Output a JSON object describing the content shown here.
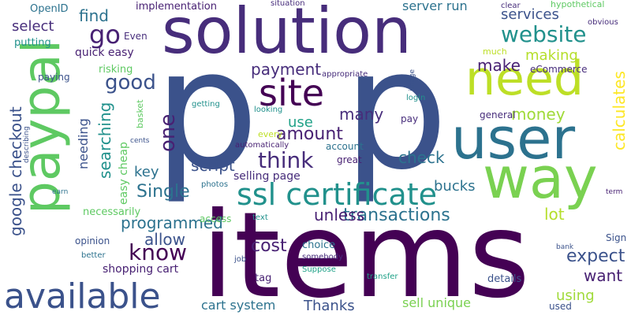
{
  "words": [
    {
      "text": "p",
      "color": "#3b528b"
    },
    {
      "text": "items",
      "color": "#440154"
    },
    {
      "text": "solution",
      "color": "#472d7b"
    },
    {
      "text": "paypal",
      "color": "#5ec962"
    },
    {
      "text": "user",
      "color": "#2c728e"
    },
    {
      "text": "way",
      "color": "#7ad151"
    },
    {
      "text": "need",
      "color": "#bddf26"
    },
    {
      "text": "available",
      "color": "#3b528b"
    },
    {
      "text": "site",
      "color": "#440154"
    },
    {
      "text": "ssl certificate",
      "color": "#21918c"
    },
    {
      "text": "good",
      "color": "#3b528b"
    },
    {
      "text": "website",
      "color": "#21918c"
    },
    {
      "text": "know",
      "color": "#440154"
    },
    {
      "text": "think",
      "color": "#472d7b"
    },
    {
      "text": "go",
      "color": "#482173"
    },
    {
      "text": "google checkout",
      "color": "#3b528b"
    },
    {
      "text": "one",
      "color": "#482173"
    },
    {
      "text": "transactions",
      "color": "#2c728e"
    },
    {
      "text": "Single",
      "color": "#2c728e"
    },
    {
      "text": "amount",
      "color": "#482173"
    },
    {
      "text": "payment",
      "color": "#472d7b"
    },
    {
      "text": "script",
      "color": "#3b528b"
    },
    {
      "text": "cost",
      "color": "#482173"
    },
    {
      "text": "calculates",
      "color": "#fde725"
    },
    {
      "text": "searching",
      "color": "#21918c"
    },
    {
      "text": "programmed",
      "color": "#2c728e"
    },
    {
      "text": "expect",
      "color": "#3b528b"
    },
    {
      "text": "check",
      "color": "#2c728e"
    },
    {
      "text": "unless",
      "color": "#482173"
    },
    {
      "text": "lot",
      "color": "#b5de2b"
    },
    {
      "text": "want",
      "color": "#482173"
    },
    {
      "text": "money",
      "color": "#a0da39"
    },
    {
      "text": "many",
      "color": "#472d7b"
    },
    {
      "text": "bucks",
      "color": "#2c728e"
    },
    {
      "text": "allow",
      "color": "#3b528b"
    },
    {
      "text": "make",
      "color": "#482173"
    },
    {
      "text": "making",
      "color": "#b5de2b"
    },
    {
      "text": "services",
      "color": "#3b528b"
    },
    {
      "text": "use",
      "color": "#1fa187"
    },
    {
      "text": "needing",
      "color": "#3b528b"
    },
    {
      "text": "find",
      "color": "#2c728e"
    },
    {
      "text": "select",
      "color": "#472d7b"
    },
    {
      "text": "key",
      "color": "#2c728e"
    },
    {
      "text": "using",
      "color": "#a0da39"
    },
    {
      "text": "Thanks",
      "color": "#3b528b"
    },
    {
      "text": "server run",
      "color": "#2c728e"
    },
    {
      "text": "cart system",
      "color": "#2c728e"
    },
    {
      "text": "sell unique",
      "color": "#7ad151"
    },
    {
      "text": "quick easy",
      "color": "#482173"
    },
    {
      "text": "selling page",
      "color": "#472d7b"
    },
    {
      "text": "shopping cart",
      "color": "#482173"
    },
    {
      "text": "easy cheap",
      "color": "#5ec962"
    },
    {
      "text": "putting",
      "color": "#21918c"
    },
    {
      "text": "OpenID",
      "color": "#2c728e"
    },
    {
      "text": "implementation",
      "color": "#482173"
    },
    {
      "text": "Even",
      "color": "#472d7b"
    },
    {
      "text": "risking",
      "color": "#5ec962"
    },
    {
      "text": "paying",
      "color": "#3b528b"
    },
    {
      "text": "necessarily",
      "color": "#5ec962"
    },
    {
      "text": "opinion",
      "color": "#3b528b"
    },
    {
      "text": "details",
      "color": "#3b528b"
    },
    {
      "text": "choice",
      "color": "#2c728e"
    },
    {
      "text": "tag",
      "color": "#482173"
    },
    {
      "text": "account",
      "color": "#2c728e"
    },
    {
      "text": "great",
      "color": "#482173"
    },
    {
      "text": "general",
      "color": "#472d7b"
    },
    {
      "text": "pay",
      "color": "#472d7b"
    },
    {
      "text": "eCommerce",
      "color": "#472d7b"
    },
    {
      "text": "much",
      "color": "#bddf26"
    },
    {
      "text": "Sign",
      "color": "#3b528b"
    },
    {
      "text": "used",
      "color": "#3b528b"
    },
    {
      "text": "basket",
      "color": "#5ec962"
    },
    {
      "text": "access",
      "color": "#5ec962"
    },
    {
      "text": "hypothetical",
      "color": "#5ec962"
    },
    {
      "text": "clear",
      "color": "#472d7b"
    },
    {
      "text": "obvious",
      "color": "#472d7b"
    },
    {
      "text": "situation",
      "color": "#472d7b"
    },
    {
      "text": "appropriate",
      "color": "#472d7b"
    },
    {
      "text": "login",
      "color": "#21918c"
    },
    {
      "text": "image",
      "color": "#3b528b"
    },
    {
      "text": "getting",
      "color": "#21918c"
    },
    {
      "text": "looking",
      "color": "#21918c"
    },
    {
      "text": "every",
      "color": "#bddf26"
    },
    {
      "text": "automatically",
      "color": "#482173"
    },
    {
      "text": "cents",
      "color": "#3b528b"
    },
    {
      "text": "describing",
      "color": "#3b528b"
    },
    {
      "text": "earn",
      "color": "#2c728e"
    },
    {
      "text": "photos",
      "color": "#2c728e"
    },
    {
      "text": "text",
      "color": "#21918c"
    },
    {
      "text": "job",
      "color": "#3b528b"
    },
    {
      "text": "better",
      "color": "#2c728e"
    },
    {
      "text": "somebody",
      "color": "#472d7b"
    },
    {
      "text": "Suppose",
      "color": "#1fa187"
    },
    {
      "text": "transfer",
      "color": "#1fa187"
    },
    {
      "text": "bank",
      "color": "#3b528b"
    },
    {
      "text": "term",
      "color": "#482173"
    }
  ]
}
